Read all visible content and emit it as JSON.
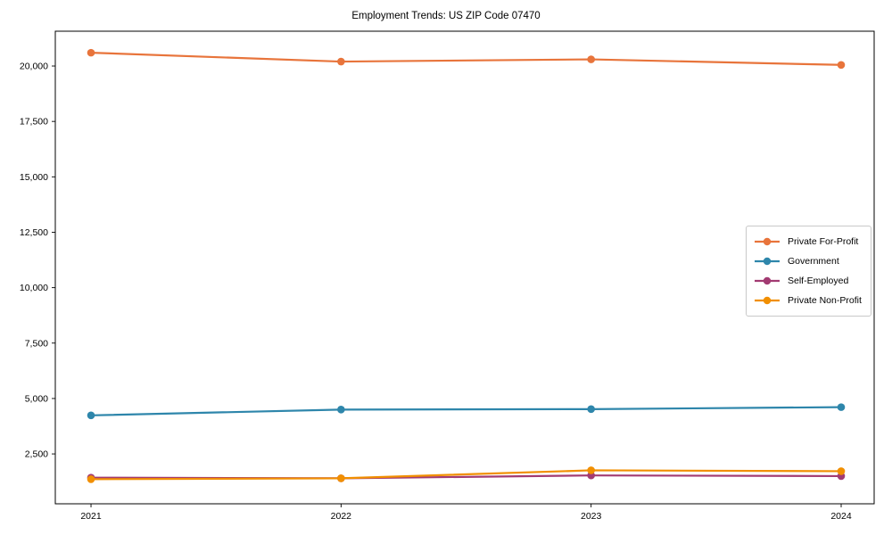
{
  "chart_data": {
    "type": "line",
    "title": "Employment Trends: US ZIP Code 07470",
    "categories": [
      "2021",
      "2022",
      "2023",
      "2024"
    ],
    "series": [
      {
        "name": "Private For-Profit",
        "color": "#E8743B",
        "values": [
          20600,
          20200,
          20300,
          20050
        ]
      },
      {
        "name": "Government",
        "color": "#2E86AB",
        "values": [
          4240,
          4500,
          4520,
          4610
        ]
      },
      {
        "name": "Self-Employed",
        "color": "#A23B72",
        "values": [
          1430,
          1400,
          1530,
          1500
        ]
      },
      {
        "name": "Private Non-Profit",
        "color": "#F18F01",
        "values": [
          1360,
          1400,
          1760,
          1720
        ]
      }
    ],
    "xlabel": "",
    "ylabel": "",
    "ylim": [
      250,
      21570
    ],
    "yticks": [
      2500,
      5000,
      7500,
      10000,
      12500,
      15000,
      17500,
      20000
    ],
    "ytick_labels": [
      "2,500",
      "5,000",
      "7,500",
      "10,000",
      "12,500",
      "15,000",
      "17,500",
      "20,000"
    ],
    "grid": false,
    "legend_position": "center-right",
    "marker": "circle",
    "axis_color": "#000000"
  }
}
